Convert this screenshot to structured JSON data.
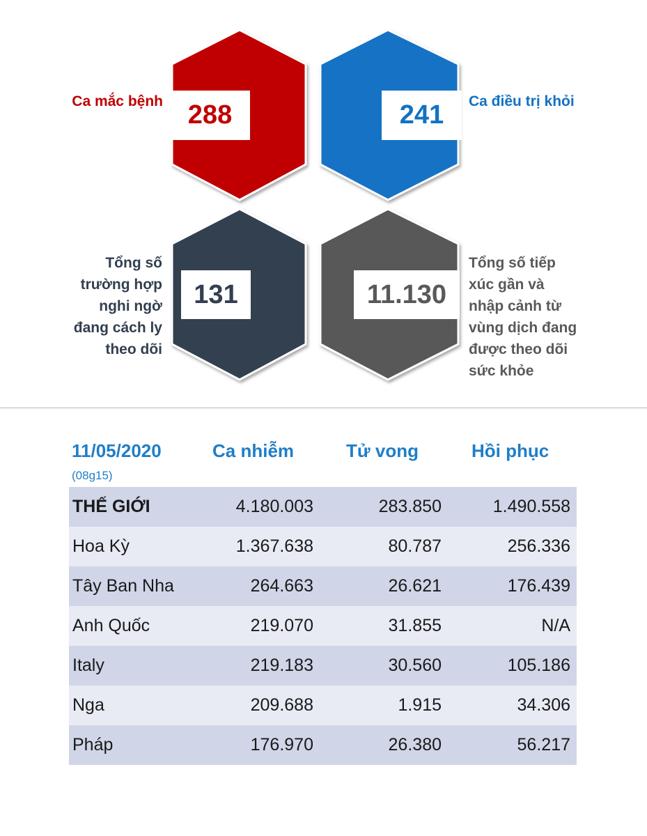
{
  "stats": {
    "cases": {
      "label_lines": [
        "Ca mắc bệnh"
      ],
      "value": "288",
      "color": "#c00000"
    },
    "recovered": {
      "label_lines": [
        "Ca điều trị khỏi"
      ],
      "value": "241",
      "color": "#1272c4"
    },
    "quarantine": {
      "label_lines": [
        "Tổng số",
        "trường hợp",
        "nghi ngờ",
        "đang cách ly",
        "theo dõi"
      ],
      "value": "131",
      "color": "#333f50"
    },
    "monitored": {
      "label_lines": [
        "Tổng số tiếp",
        "xúc gần và",
        "nhập cảnh từ",
        "vùng dịch đang",
        "được theo dõi",
        "sức khỏe"
      ],
      "value": "11.130",
      "color": "#595959"
    }
  },
  "table": {
    "date": "11/05/2020",
    "time": "(08g15)",
    "headers": [
      "Ca nhiễm",
      "Tử vong",
      "Hồi phục"
    ],
    "rows": [
      {
        "name": "THẾ GIỚI",
        "infected": "4.180.003",
        "deaths": "283.850",
        "recovered": "1.490.558"
      },
      {
        "name": "Hoa Kỳ",
        "infected": "1.367.638",
        "deaths": "80.787",
        "recovered": "256.336"
      },
      {
        "name": "Tây Ban Nha",
        "infected": "264.663",
        "deaths": "26.621",
        "recovered": "176.439"
      },
      {
        "name": "Anh Quốc",
        "infected": "219.070",
        "deaths": "31.855",
        "recovered": "N/A"
      },
      {
        "name": "Italy",
        "infected": "219.183",
        "deaths": "30.560",
        "recovered": "105.186"
      },
      {
        "name": "Nga",
        "infected": "209.688",
        "deaths": "1.915",
        "recovered": "34.306"
      },
      {
        "name": "Pháp",
        "infected": "176.970",
        "deaths": "26.380",
        "recovered": "56.217"
      }
    ]
  }
}
